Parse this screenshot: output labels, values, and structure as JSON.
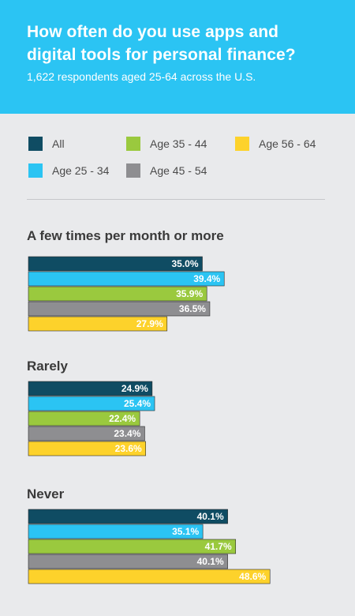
{
  "header": {
    "title_line1": "How often do you use apps and",
    "title_line2": "digital tools for personal finance?",
    "subtitle": "1,622 respondents aged 25-64 across the U.S."
  },
  "legend": [
    {
      "label": "All",
      "color": "#0f4c63"
    },
    {
      "label": "Age 25 - 34",
      "color": "#2bc4f3"
    },
    {
      "label": "Age 35 - 44",
      "color": "#9ac93e"
    },
    {
      "label": "Age 45 - 54",
      "color": "#8e8e91"
    },
    {
      "label": "Age 56 - 64",
      "color": "#fdd22b"
    }
  ],
  "chart_data": {
    "type": "bar",
    "orientation": "horizontal",
    "categories": [
      "A few times per month or more",
      "Rarely",
      "Never"
    ],
    "series": [
      {
        "name": "All",
        "color": "#0f4c63",
        "values": [
          35.0,
          24.9,
          40.1
        ]
      },
      {
        "name": "Age 25 - 34",
        "color": "#2bc4f3",
        "values": [
          39.4,
          25.4,
          35.1
        ]
      },
      {
        "name": "Age 35 - 44",
        "color": "#9ac93e",
        "values": [
          35.9,
          22.4,
          41.7
        ]
      },
      {
        "name": "Age 45 - 54",
        "color": "#8e8e91",
        "values": [
          36.5,
          23.4,
          40.1
        ]
      },
      {
        "name": "Age 56 - 64",
        "color": "#fdd22b",
        "values": [
          27.9,
          23.6,
          48.6
        ]
      }
    ],
    "value_labels": [
      [
        "35.0%",
        "39.4%",
        "35.9%",
        "36.5%",
        "27.9%"
      ],
      [
        "24.9%",
        "25.4%",
        "22.4%",
        "23.4%",
        "23.6%"
      ],
      [
        "40.1%",
        "35.1%",
        "41.7%",
        "40.1%",
        "48.6%"
      ]
    ],
    "unit": "%",
    "legend_position": "top",
    "grid": false
  }
}
